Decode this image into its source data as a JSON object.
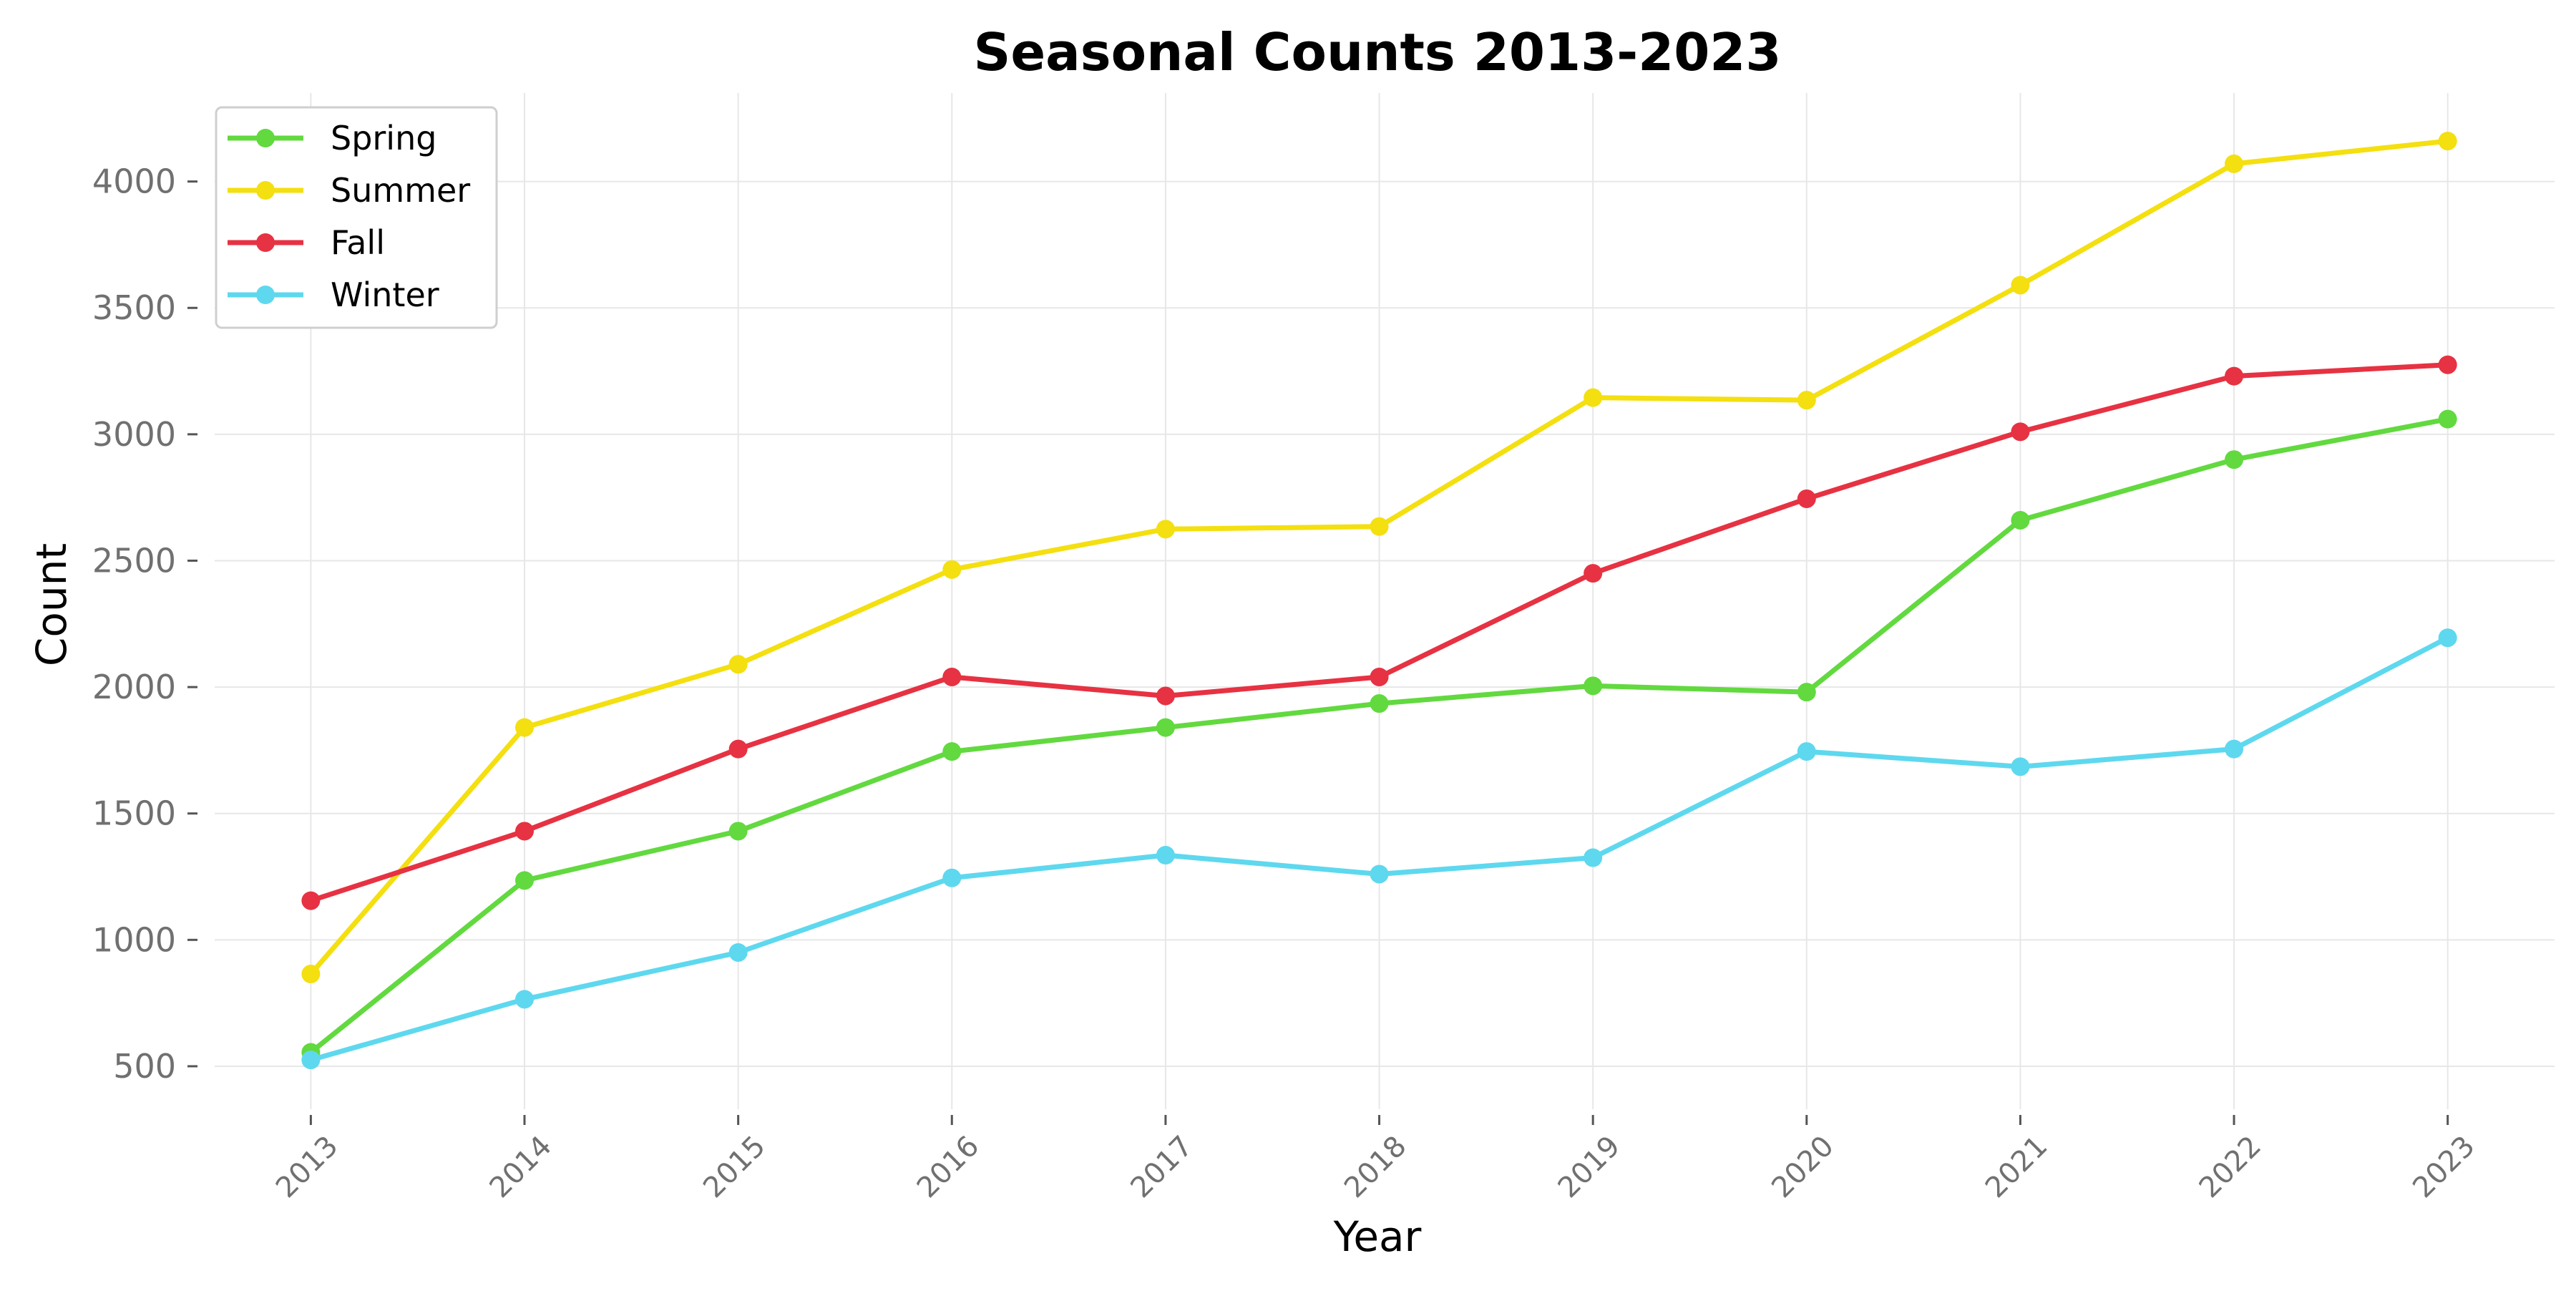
{
  "chart_data": {
    "type": "line",
    "title": "Seasonal Counts 2013-2023",
    "xlabel": "Year",
    "ylabel": "Count",
    "x": [
      2013,
      2014,
      2015,
      2016,
      2017,
      2018,
      2019,
      2020,
      2021,
      2022,
      2023
    ],
    "x_tick_labels": [
      "2013",
      "2014",
      "2015",
      "2016",
      "2017",
      "2018",
      "2019",
      "2020",
      "2021",
      "2022",
      "2023"
    ],
    "y_ticks": [
      500,
      1000,
      1500,
      2000,
      2500,
      3000,
      3500,
      4000
    ],
    "y_tick_labels": [
      "500",
      "1000",
      "1500",
      "2000",
      "2500",
      "3000",
      "3500",
      "4000"
    ],
    "ylim": [
      330,
      4350
    ],
    "xlim": [
      2012.55,
      2023.5
    ],
    "grid": true,
    "legend_position": "top-left",
    "series": [
      {
        "name": "Spring",
        "color": "#62d93f",
        "values": [
          555,
          1235,
          1430,
          1745,
          1840,
          1935,
          2005,
          1980,
          2660,
          2900,
          3060
        ]
      },
      {
        "name": "Summer",
        "color": "#f4df10",
        "values": [
          865,
          1840,
          2090,
          2465,
          2625,
          2635,
          3145,
          3135,
          3590,
          4070,
          4160
        ]
      },
      {
        "name": "Fall",
        "color": "#e63242",
        "values": [
          1155,
          1430,
          1755,
          2040,
          1965,
          2040,
          2450,
          2745,
          3010,
          3230,
          3275
        ]
      },
      {
        "name": "Winter",
        "color": "#5ed8ee",
        "values": [
          525,
          765,
          950,
          1245,
          1335,
          1260,
          1325,
          1745,
          1685,
          1755,
          2195
        ]
      }
    ]
  }
}
